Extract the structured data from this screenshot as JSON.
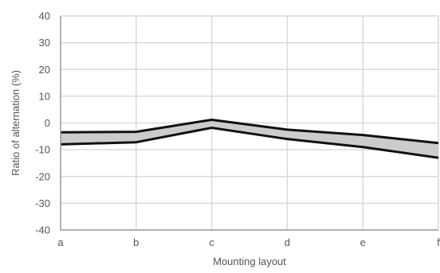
{
  "chart_data": {
    "type": "area",
    "title": "",
    "xlabel": "Mounting layout",
    "ylabel": "Ratio of alternation (%)",
    "categories": [
      "a",
      "b",
      "c",
      "d",
      "e",
      "f"
    ],
    "ylim": [
      -40,
      40
    ],
    "yticks": [
      -40,
      -30,
      -20,
      -10,
      0,
      10,
      20,
      30,
      40
    ],
    "grid": true,
    "legend": "none",
    "series": [
      {
        "values": [
          -3.5,
          -3.3,
          1.2,
          -2.5,
          -4.5,
          -7.5
        ]
      },
      {
        "values": [
          -8,
          -7.2,
          -1.8,
          -6,
          -9,
          -13
        ]
      }
    ],
    "colors": {
      "band_fill": "#cccccc",
      "line": "#111111",
      "grid": "#d9d9d9",
      "axis": "#999999",
      "text": "#555555"
    }
  }
}
